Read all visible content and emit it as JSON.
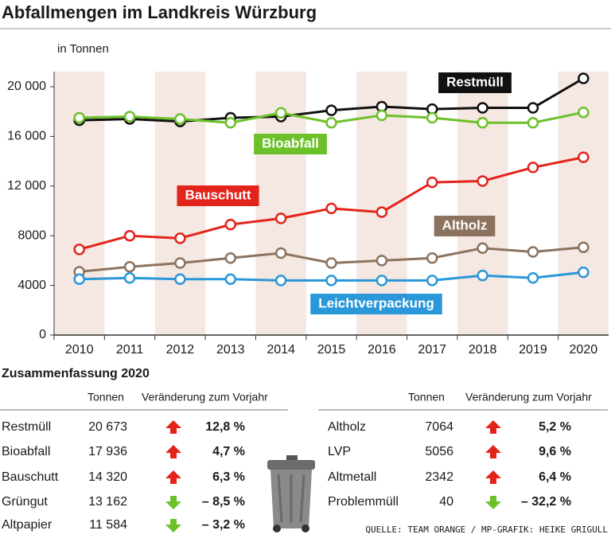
{
  "chart_data": {
    "type": "line",
    "title": "Abfallmengen im Landkreis Würzburg",
    "y_label": "in Tonnen",
    "categories": [
      "2010",
      "2011",
      "2012",
      "2013",
      "2014",
      "2015",
      "2016",
      "2017",
      "2018",
      "2019",
      "2020"
    ],
    "series": [
      {
        "name": "Restmüll",
        "color": "#111111",
        "values": [
          17300,
          17400,
          17200,
          17500,
          17600,
          18100,
          18400,
          18200,
          18300,
          18300,
          20673
        ]
      },
      {
        "name": "Bioabfall",
        "color": "#6cc12a",
        "values": [
          17500,
          17600,
          17400,
          17100,
          17900,
          17100,
          17700,
          17500,
          17100,
          17100,
          17936
        ]
      },
      {
        "name": "Bauschutt",
        "color": "#e3241b",
        "values": [
          6900,
          8000,
          7800,
          8900,
          9400,
          10200,
          9900,
          12300,
          12400,
          13500,
          14320
        ]
      },
      {
        "name": "Altholz",
        "color": "#8c735f",
        "values": [
          5100,
          5500,
          5800,
          6200,
          6600,
          5800,
          6000,
          6200,
          7000,
          6700,
          7064
        ]
      },
      {
        "name": "Leichtverpackung",
        "color": "#2a97d8",
        "values": [
          4500,
          4600,
          4500,
          4500,
          4400,
          4400,
          4400,
          4400,
          4800,
          4600,
          5056
        ]
      }
    ],
    "ylim": [
      0,
      20000
    ],
    "yticks": [
      0,
      4000,
      8000,
      {
        "value": 12000,
        "label": "12 000"
      },
      {
        "value": 16000,
        "label": "16 000"
      },
      {
        "value": 20000,
        "label": "20 000"
      }
    ]
  },
  "summary": {
    "title": "Zusammenfassung 2020",
    "columns": [
      "Tonnen",
      "Veränderung zum Vorjahr"
    ],
    "left_rows": [
      [
        "Restmüll",
        "20 673",
        "12,8 %"
      ],
      [
        "Bioabfall",
        "17 936",
        "4,7 %"
      ],
      [
        "Bauschutt",
        "14 320",
        "6,3 %"
      ],
      [
        "Grüngut",
        "13 162",
        "– 8,5 %"
      ],
      [
        "Altpapier",
        "11 584",
        "– 3,2 %"
      ]
    ],
    "right_rows": [
      [
        "Altholz",
        "7064",
        "5,2 %"
      ],
      [
        "LVP",
        "5056",
        "9,6 %"
      ],
      [
        "Altmetall",
        "2342",
        "6,4 %"
      ],
      [
        "Problemmüll",
        "40",
        "– 32,2 %"
      ]
    ],
    "source": "QUELLE: TEAM ORANGE / MP-GRAFIK: HEIKE GRIGULL"
  }
}
